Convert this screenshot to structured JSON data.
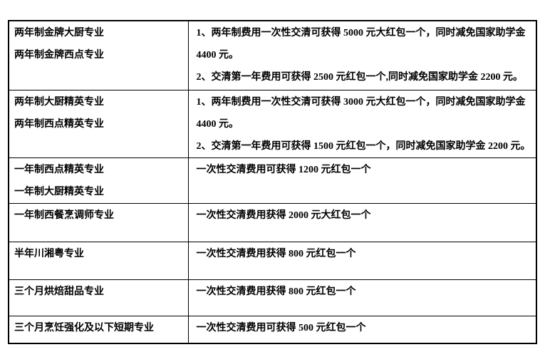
{
  "colors": {
    "background": "#ffffff",
    "border": "#000000",
    "text": "#000000"
  },
  "table": {
    "rows": [
      {
        "programs": [
          "两年制金牌大厨专业",
          "两年制金牌西点专业"
        ],
        "offers": [
          "1、两年制费用一次性交清可获得 5000 元大红包一个，同时减免国家助学金",
          "4400 元。",
          "2、交清第一年费用可获得 2500 元红包一个,同时减免国家助学金 2200 元。"
        ]
      },
      {
        "programs": [
          "两年制大厨精英专业",
          "两年制西点精英专业"
        ],
        "offers": [
          "1、两年制费用一次性交清可获得 3000 元大红包一个，同时减免国家助学金",
          "4400 元。",
          "2、交清第一年费用可获得 1500 元红包一个，同时减免国家助学金 2200 元。"
        ]
      },
      {
        "programs": [
          "一年制西点精英专业",
          "一年制大厨精英专业"
        ],
        "offers": [
          "一次性交清费用可获得 1200 元红包一个"
        ]
      },
      {
        "programs": [
          "一年制西餐烹调师专业"
        ],
        "offers": [
          "一次性交清费用获得 2000 元大红包一个"
        ]
      },
      {
        "programs": [
          "半年川湘粤专业"
        ],
        "offers": [
          "一次性交清费用获得 800 元红包一个"
        ]
      },
      {
        "programs": [
          "三个月烘焙甜品专业"
        ],
        "offers": [
          "一次性交清费用获得 800 元红包一个"
        ]
      },
      {
        "programs": [
          "三个月烹饪强化及以下短期专业"
        ],
        "offers": [
          "一次性交清费用可获得 500 元红包一个"
        ]
      }
    ]
  }
}
